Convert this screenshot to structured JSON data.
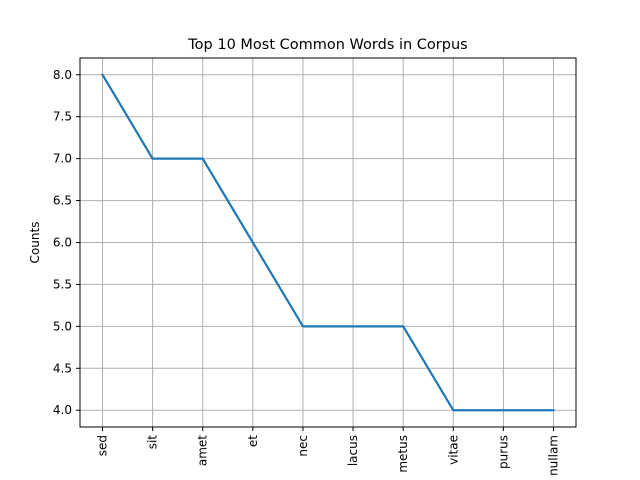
{
  "chart_data": {
    "type": "line",
    "title": "Top 10 Most Common Words in Corpus",
    "xlabel": "",
    "ylabel": "Counts",
    "categories": [
      "sed",
      "sit",
      "amet",
      "et",
      "nec",
      "lacus",
      "metus",
      "vitae",
      "purus",
      "nullam"
    ],
    "series": [
      {
        "values": [
          8,
          7,
          7,
          6,
          5,
          5,
          5,
          4,
          4,
          4
        ],
        "color": "#1f77b4"
      }
    ],
    "ylim": [
      3.8,
      8.2
    ],
    "yticks": [
      "4.0",
      "4.5",
      "5.0",
      "5.5",
      "6.0",
      "6.5",
      "7.0",
      "7.5",
      "8.0"
    ],
    "grid": true,
    "grid_color": "#b0b0b0",
    "legend": "none",
    "x_tick_rotation": "vertical"
  }
}
